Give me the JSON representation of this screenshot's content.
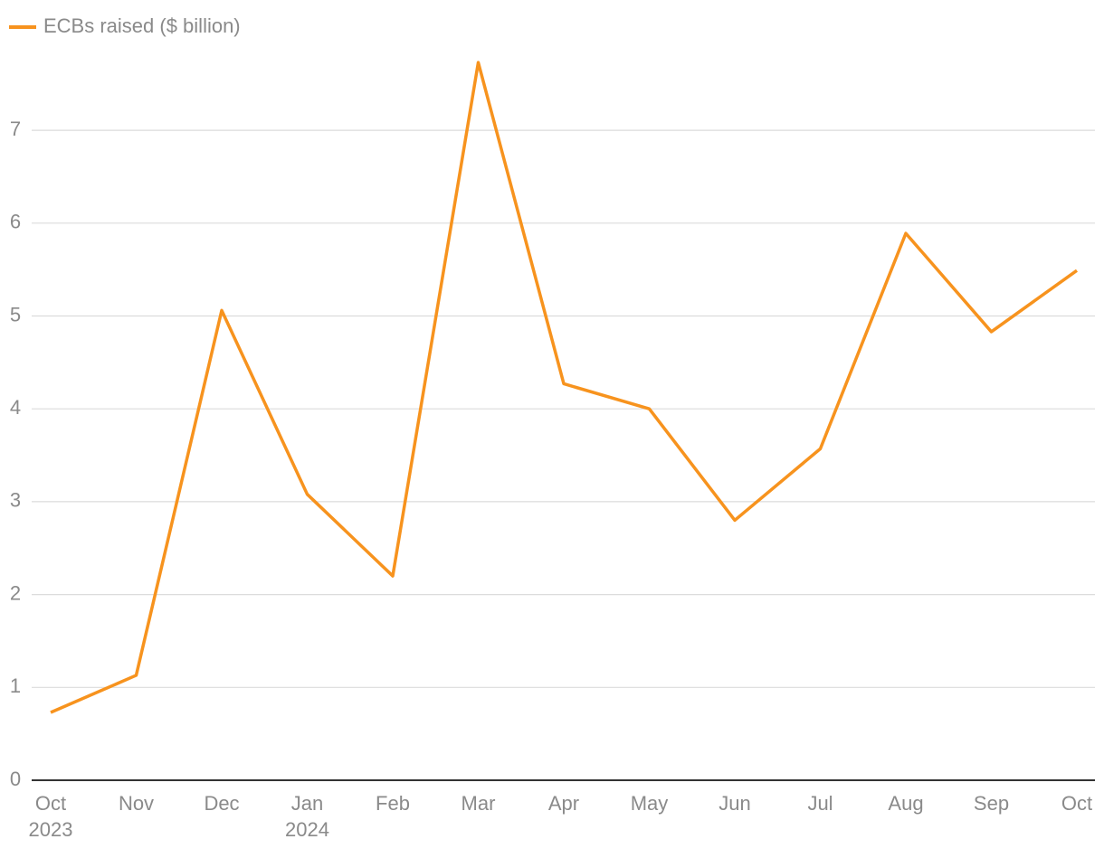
{
  "chart_data": {
    "type": "line",
    "categories": [
      "Oct",
      "Nov",
      "Dec",
      "Jan",
      "Feb",
      "Mar",
      "Apr",
      "May",
      "Jun",
      "Jul",
      "Aug",
      "Sep",
      "Oct"
    ],
    "category_sublabels": [
      "2023",
      null,
      null,
      "2024",
      null,
      null,
      null,
      null,
      null,
      null,
      null,
      null,
      null
    ],
    "series": [
      {
        "name": "ECBs raised ($ billion)",
        "color": "#f7931e",
        "values": [
          0.73,
          1.13,
          5.06,
          3.08,
          2.2,
          7.73,
          4.27,
          4.0,
          2.8,
          3.57,
          5.89,
          4.83,
          5.49
        ]
      }
    ],
    "ylim": [
      0,
      7.8
    ],
    "yticks": [
      0,
      1,
      2,
      3,
      4,
      5,
      6,
      7
    ],
    "grid": true,
    "legend": "top-left"
  }
}
